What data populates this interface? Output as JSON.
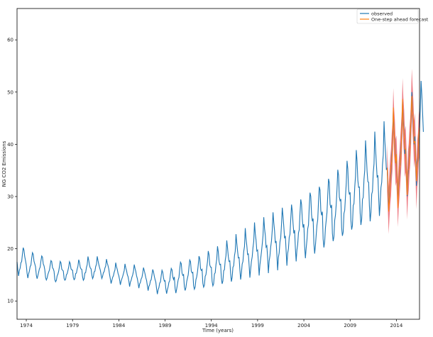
{
  "chart_data": {
    "type": "line",
    "title": "",
    "xlabel": "Time (years)",
    "ylabel": "NG CO2 Emissions",
    "xlim": [
      1973.0,
      2016.5
    ],
    "ylim": [
      6.5,
      66.0
    ],
    "xticks": [
      1974,
      1979,
      1984,
      1989,
      1994,
      1999,
      2004,
      2009,
      2014
    ],
    "yticks": [
      10,
      20,
      30,
      40,
      50,
      60
    ],
    "grid": false,
    "legend": {
      "placement": "top-right",
      "entries": [
        "observed",
        "One-step ahead forecast"
      ]
    },
    "colors": {
      "observed": "#1f77b4",
      "forecast": "#ff7f0e",
      "confidence": "#e8505b"
    },
    "series": [
      {
        "name": "observed",
        "start_year": 1973,
        "frequency": "monthly",
        "annual_amplitude": [
          5.2,
          4.8,
          4.4,
          3.8,
          4.0,
          3.6,
          3.8,
          4.4,
          4.0,
          3.4,
          3.6,
          3.6,
          3.8,
          3.6,
          3.8,
          4.4,
          4.8,
          6.0,
          6.0,
          6.5,
          7.0,
          7.5,
          8.0,
          8.5,
          9.0,
          9.5,
          10.0,
          10.5,
          11.0,
          11.0,
          11.5,
          12.5,
          13.0,
          13.5,
          14.0,
          14.5,
          15.0,
          15.5,
          16.0,
          16.5,
          17.0,
          17.5,
          18.0,
          18.5
        ],
        "annual_baseline": [
          17.5,
          16.8,
          16.4,
          15.8,
          15.5,
          15.6,
          15.8,
          16.0,
          16.2,
          16.0,
          15.2,
          15.0,
          14.8,
          14.4,
          14.0,
          13.6,
          13.8,
          14.4,
          14.8,
          15.2,
          15.8,
          16.3,
          17.0,
          17.8,
          18.6,
          19.4,
          20.2,
          21.0,
          21.8,
          22.6,
          23.5,
          24.4,
          25.3,
          26.5,
          27.8,
          29.0,
          30.5,
          31.8,
          33.0,
          34.6,
          36.2,
          38.0,
          39.8,
          42.0
        ]
      },
      {
        "name": "One-step ahead forecast",
        "start": 2013.0,
        "end": 2016.5
      }
    ],
    "confidence_band": {
      "start": 2013.0,
      "end": 2016.5,
      "half_width": 4.5
    }
  }
}
